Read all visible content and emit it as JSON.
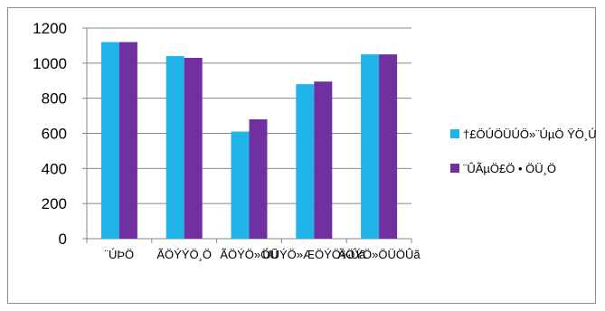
{
  "chart_data": {
    "type": "bar",
    "title": "",
    "xlabel": "",
    "ylabel": "",
    "categories": [
      "¨ÚÞÖ",
      "ÃÖÝÝÖ¸Ö",
      "ÃÖÝÖ»ÖÜ",
      "ÚÜÝÖ»ÆÖÝÖ¾Ûã",
      "ÃÖÝÖ»ÖÜÖÛã"
    ],
    "series": [
      {
        "name": "†£ÖÚÖÜÚÖ»¨ÚµÖ ŸÖ¸ÚÜÖ¥ÖÛ",
        "color": "#1FB3E8",
        "values": [
          1120,
          1040,
          610,
          880,
          1050
        ]
      },
      {
        "name": "¨ÛÃµÖ£Ö • ÖÜ¸Ö",
        "color": "#7030A0",
        "values": [
          1120,
          1030,
          680,
          895,
          1050
        ]
      }
    ],
    "ylim": [
      0,
      1200
    ],
    "yticks": [
      0,
      200,
      400,
      600,
      800,
      1000,
      1200
    ],
    "grid": true,
    "legend": "right"
  }
}
